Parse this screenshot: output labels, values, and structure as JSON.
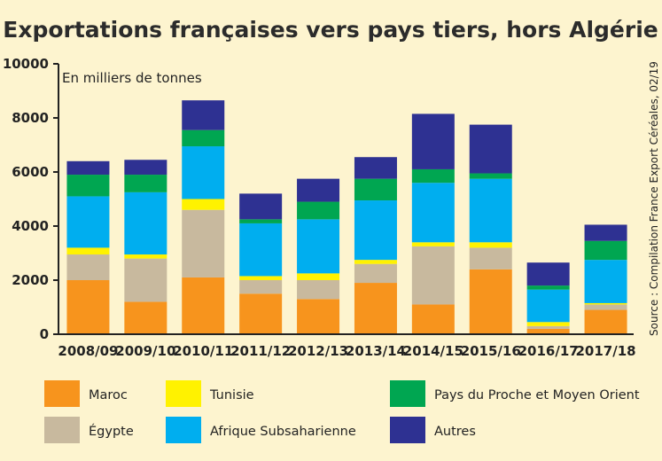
{
  "chart_data": {
    "type": "bar",
    "stacked": true,
    "title": "Exportations françaises vers pays tiers, hors Algérie",
    "unit_label": "En milliers de tonnes",
    "source": "Source : Compilation France Export Céréales, 02/19",
    "ylim": [
      0,
      10000
    ],
    "yticks": [
      0,
      2000,
      4000,
      6000,
      8000,
      10000
    ],
    "categories": [
      "2008/09",
      "2009/10",
      "2010/11",
      "2011/12",
      "2012/13",
      "2013/14",
      "2014/15",
      "2015/16",
      "2016/17",
      "2017/18"
    ],
    "series": [
      {
        "name": "Maroc",
        "color": "#f7941d",
        "values": [
          2000,
          1200,
          2100,
          1500,
          1300,
          1900,
          1100,
          2400,
          200,
          900
        ]
      },
      {
        "name": "Égypte",
        "color": "#c8b99e",
        "values": [
          950,
          1600,
          2500,
          500,
          700,
          700,
          2150,
          800,
          100,
          200
        ]
      },
      {
        "name": "Tunisie",
        "color": "#fff200",
        "values": [
          250,
          150,
          400,
          150,
          250,
          150,
          150,
          200,
          150,
          50
        ]
      },
      {
        "name": "Afrique Subsaharienne",
        "color": "#00aeef",
        "values": [
          1900,
          2300,
          1950,
          1950,
          2000,
          2200,
          2200,
          2350,
          1200,
          1600
        ]
      },
      {
        "name": "Pays du Proche et Moyen Orient",
        "color": "#00a651",
        "values": [
          800,
          650,
          600,
          150,
          650,
          800,
          500,
          200,
          150,
          700
        ]
      },
      {
        "name": "Autres",
        "color": "#2e3192",
        "values": [
          500,
          550,
          1100,
          950,
          850,
          800,
          2050,
          1800,
          850,
          600
        ]
      }
    ],
    "legend_position": "bottom"
  }
}
